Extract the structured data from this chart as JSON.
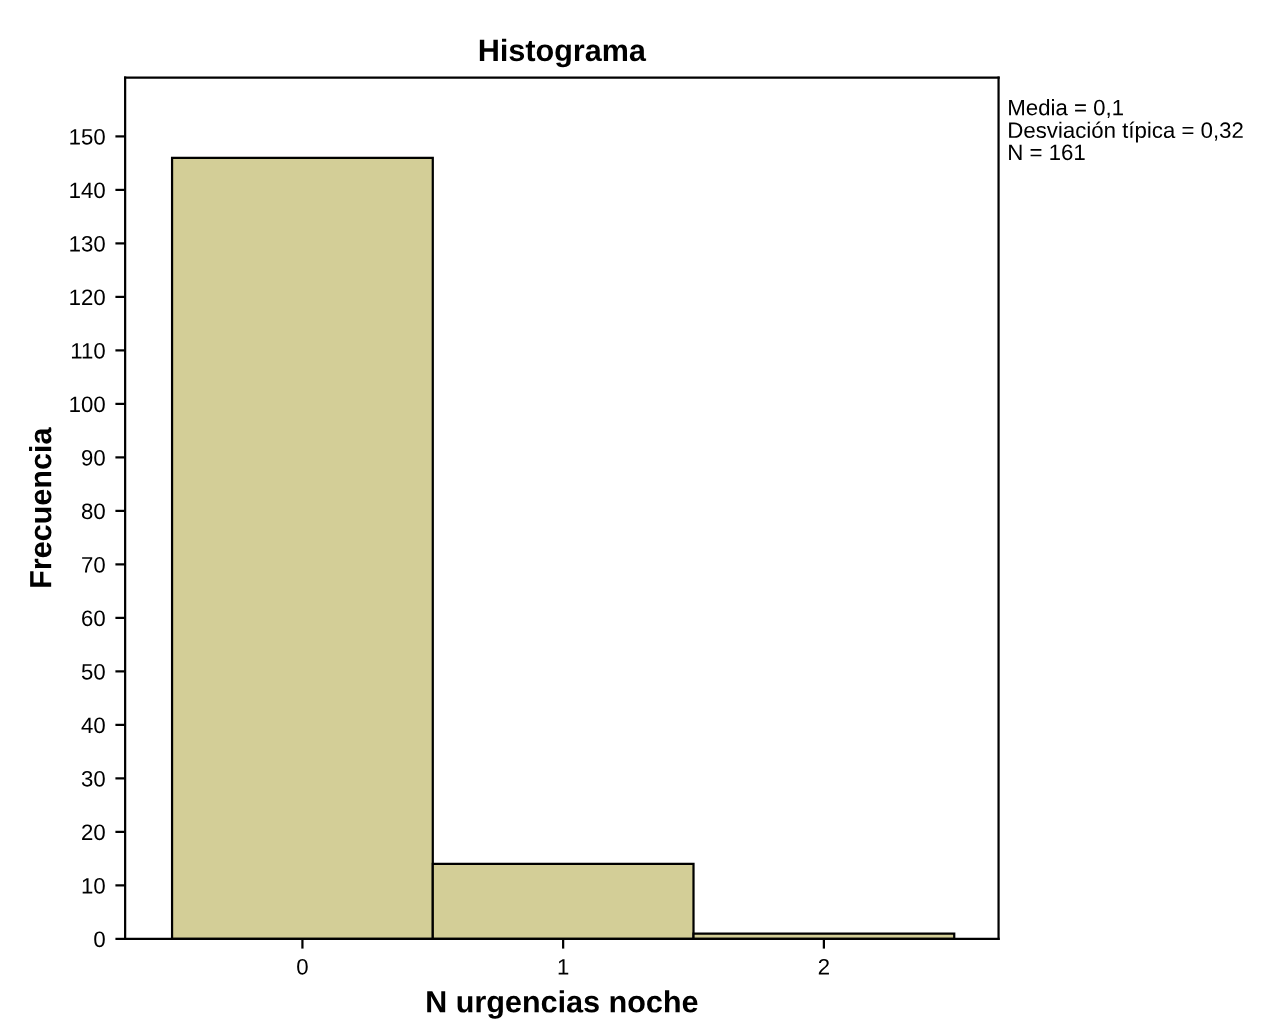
{
  "chart_data": {
    "type": "histogram",
    "title": "Histograma",
    "xlabel": "N urgencias noche",
    "ylabel": "Frecuencia",
    "bins": [
      -0.5,
      0.5,
      1.5,
      2.5
    ],
    "values": [
      146,
      14,
      1
    ],
    "color": "#d3ce97",
    "xlim": [
      -0.68,
      2.67
    ],
    "ylim": [
      0,
      161
    ],
    "xticks": [
      0,
      1,
      2
    ],
    "yticks": [
      0,
      10,
      20,
      30,
      40,
      50,
      60,
      70,
      80,
      90,
      100,
      110,
      120,
      130,
      140,
      150
    ],
    "grid": false,
    "legend": false,
    "annotations": [
      "Media = 0,1",
      "Desviación típica = 0,32",
      "N = 161"
    ]
  }
}
